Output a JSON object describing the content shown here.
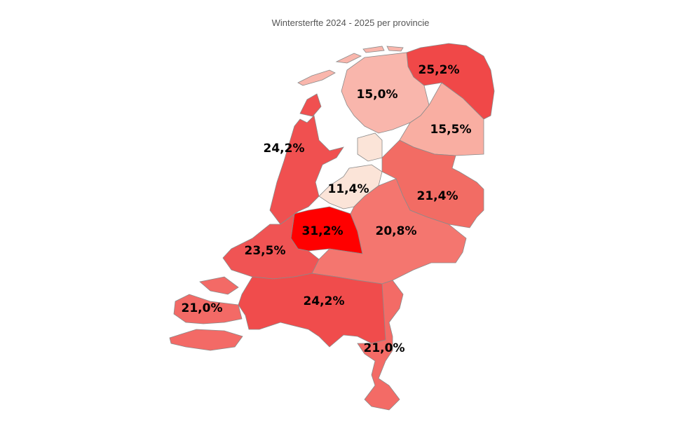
{
  "title": "Wintersterfte 2024 - 2025 per provincie",
  "regions": [
    {
      "value": 25.2,
      "label": "25,2%",
      "color": "#f04848"
    },
    {
      "value": 15.0,
      "label": "15,0%",
      "color": "#f9b6ac"
    },
    {
      "value": 15.5,
      "label": "15,5%",
      "color": "#f9aea2"
    },
    {
      "value": 24.2,
      "label": "24,2%",
      "color": "#f05050"
    },
    {
      "value": 11.4,
      "label": "11,4%",
      "color": "#fbe4d8"
    },
    {
      "value": 21.4,
      "label": "21,4%",
      "color": "#f26c64"
    },
    {
      "value": 31.2,
      "label": "31,2%",
      "color": "#ff0000"
    },
    {
      "value": 20.8,
      "label": "20,8%",
      "color": "#f4766f"
    },
    {
      "value": 23.5,
      "label": "23,5%",
      "color": "#f05454"
    },
    {
      "value": 21.0,
      "label": "21,0%",
      "color": "#f36a66"
    },
    {
      "value": 24.2,
      "label": "24,2%",
      "color": "#f04c4c"
    },
    {
      "value": 21.0,
      "label": "21,0%",
      "color": "#f36b66"
    }
  ]
}
